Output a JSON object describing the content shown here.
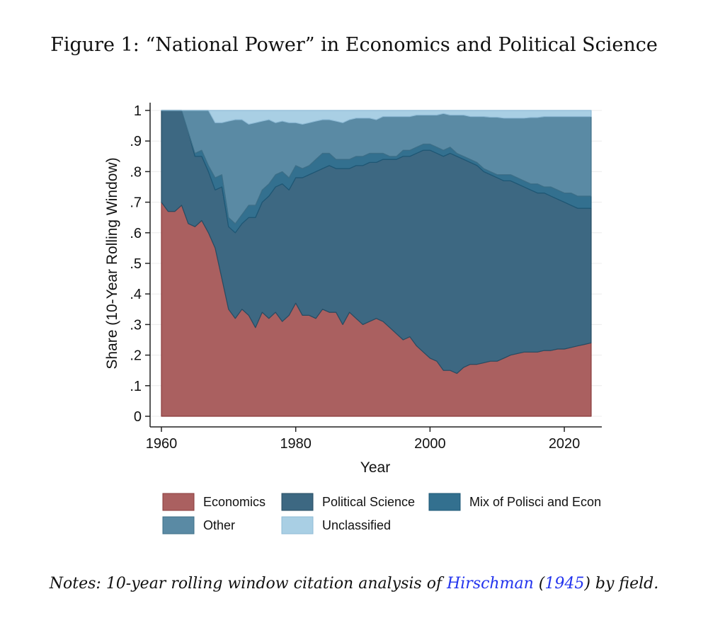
{
  "figure": {
    "title": "Figure 1: “National Power” in Economics and Political Science",
    "notes_prefix": "Notes: 10-year rolling window citation analysis of ",
    "notes_author": "Hirschman",
    "notes_open": " (",
    "notes_year": "1945",
    "notes_suffix": ") by field."
  },
  "chart_data": {
    "type": "area",
    "stacked": true,
    "xlabel": "Year",
    "ylabel": "Share (10-Year Rolling Window)",
    "xlim": [
      1960,
      2024
    ],
    "ylim": [
      0,
      1
    ],
    "xticks": [
      1960,
      1980,
      2000,
      2020
    ],
    "xtick_labels": [
      "1960",
      "1980",
      "2000",
      "2020"
    ],
    "yticks": [
      0,
      0.1,
      0.2,
      0.3,
      0.4,
      0.5,
      0.6,
      0.7,
      0.8,
      0.9,
      1
    ],
    "ytick_labels": [
      "0",
      ".1",
      ".2",
      ".3",
      ".4",
      ".5",
      ".6",
      ".7",
      ".8",
      ".9",
      "1"
    ],
    "grid": true,
    "legend_position": "bottom",
    "x": [
      1960,
      1961,
      1962,
      1963,
      1964,
      1965,
      1966,
      1967,
      1968,
      1969,
      1970,
      1971,
      1972,
      1973,
      1974,
      1975,
      1976,
      1977,
      1978,
      1979,
      1980,
      1981,
      1982,
      1983,
      1984,
      1985,
      1986,
      1987,
      1988,
      1989,
      1990,
      1991,
      1992,
      1993,
      1994,
      1995,
      1996,
      1997,
      1998,
      1999,
      2000,
      2001,
      2002,
      2003,
      2004,
      2005,
      2006,
      2007,
      2008,
      2009,
      2010,
      2011,
      2012,
      2013,
      2014,
      2015,
      2016,
      2017,
      2018,
      2019,
      2020,
      2021,
      2022,
      2023,
      2024
    ],
    "cumulative_tops": {
      "Economics": [
        0.7,
        0.67,
        0.67,
        0.69,
        0.63,
        0.62,
        0.64,
        0.6,
        0.55,
        0.45,
        0.35,
        0.32,
        0.35,
        0.33,
        0.29,
        0.34,
        0.32,
        0.34,
        0.31,
        0.33,
        0.37,
        0.33,
        0.33,
        0.32,
        0.35,
        0.34,
        0.34,
        0.3,
        0.34,
        0.32,
        0.3,
        0.31,
        0.32,
        0.31,
        0.29,
        0.27,
        0.25,
        0.26,
        0.23,
        0.21,
        0.19,
        0.18,
        0.15,
        0.15,
        0.14,
        0.16,
        0.17,
        0.17,
        0.175,
        0.18,
        0.18,
        0.19,
        0.2,
        0.205,
        0.21,
        0.21,
        0.21,
        0.215,
        0.215,
        0.22,
        0.22,
        0.225,
        0.23,
        0.235,
        0.24
      ],
      "Political Science": [
        1.0,
        1.0,
        1.0,
        1.0,
        0.93,
        0.85,
        0.85,
        0.8,
        0.74,
        0.75,
        0.62,
        0.6,
        0.63,
        0.65,
        0.65,
        0.7,
        0.72,
        0.75,
        0.76,
        0.74,
        0.78,
        0.78,
        0.79,
        0.8,
        0.81,
        0.82,
        0.81,
        0.81,
        0.81,
        0.82,
        0.82,
        0.83,
        0.83,
        0.84,
        0.84,
        0.84,
        0.85,
        0.85,
        0.86,
        0.87,
        0.87,
        0.86,
        0.85,
        0.86,
        0.85,
        0.84,
        0.83,
        0.82,
        0.8,
        0.79,
        0.78,
        0.77,
        0.77,
        0.76,
        0.75,
        0.74,
        0.73,
        0.73,
        0.72,
        0.71,
        0.7,
        0.69,
        0.68,
        0.68,
        0.68
      ],
      "Mix of Polisci and Econ": [
        1.0,
        1.0,
        1.0,
        1.0,
        0.93,
        0.86,
        0.87,
        0.82,
        0.78,
        0.79,
        0.65,
        0.63,
        0.66,
        0.69,
        0.69,
        0.74,
        0.76,
        0.79,
        0.8,
        0.78,
        0.82,
        0.81,
        0.82,
        0.84,
        0.86,
        0.86,
        0.84,
        0.84,
        0.84,
        0.85,
        0.85,
        0.86,
        0.86,
        0.86,
        0.85,
        0.85,
        0.87,
        0.87,
        0.88,
        0.89,
        0.89,
        0.88,
        0.87,
        0.88,
        0.86,
        0.85,
        0.84,
        0.83,
        0.81,
        0.8,
        0.79,
        0.79,
        0.79,
        0.78,
        0.77,
        0.76,
        0.76,
        0.75,
        0.75,
        0.74,
        0.73,
        0.73,
        0.72,
        0.72,
        0.72
      ],
      "Other": [
        1.0,
        1.0,
        1.0,
        1.0,
        1.0,
        1.0,
        1.0,
        1.0,
        0.96,
        0.96,
        0.965,
        0.97,
        0.97,
        0.955,
        0.96,
        0.965,
        0.97,
        0.96,
        0.965,
        0.96,
        0.96,
        0.955,
        0.96,
        0.965,
        0.97,
        0.97,
        0.965,
        0.96,
        0.97,
        0.975,
        0.975,
        0.975,
        0.97,
        0.98,
        0.98,
        0.98,
        0.98,
        0.98,
        0.985,
        0.985,
        0.985,
        0.985,
        0.99,
        0.985,
        0.985,
        0.985,
        0.98,
        0.98,
        0.98,
        0.978,
        0.978,
        0.975,
        0.975,
        0.975,
        0.975,
        0.977,
        0.977,
        0.98,
        0.98,
        0.98,
        0.98,
        0.98,
        0.98,
        0.98,
        0.98
      ],
      "Unclassified": [
        1,
        1,
        1,
        1,
        1,
        1,
        1,
        1,
        1,
        1,
        1,
        1,
        1,
        1,
        1,
        1,
        1,
        1,
        1,
        1,
        1,
        1,
        1,
        1,
        1,
        1,
        1,
        1,
        1,
        1,
        1,
        1,
        1,
        1,
        1,
        1,
        1,
        1,
        1,
        1,
        1,
        1,
        1,
        1,
        1,
        1,
        1,
        1,
        1,
        1,
        1,
        1,
        1,
        1,
        1,
        1,
        1,
        1,
        1,
        1,
        1,
        1,
        1,
        1,
        1
      ]
    },
    "series": [
      {
        "name": "Economics",
        "color": "#aa6060",
        "edge": "#8a3b3b"
      },
      {
        "name": "Political Science",
        "color": "#3d6882",
        "edge": "#264c63"
      },
      {
        "name": "Mix of Polisci and Econ",
        "color": "#33708f",
        "edge": "#1e5775"
      },
      {
        "name": "Other",
        "color": "#5a8aa4",
        "edge": "#3f7089"
      },
      {
        "name": "Unclassified",
        "color": "#a9cfe4",
        "edge": "#8fbbd6"
      }
    ]
  }
}
